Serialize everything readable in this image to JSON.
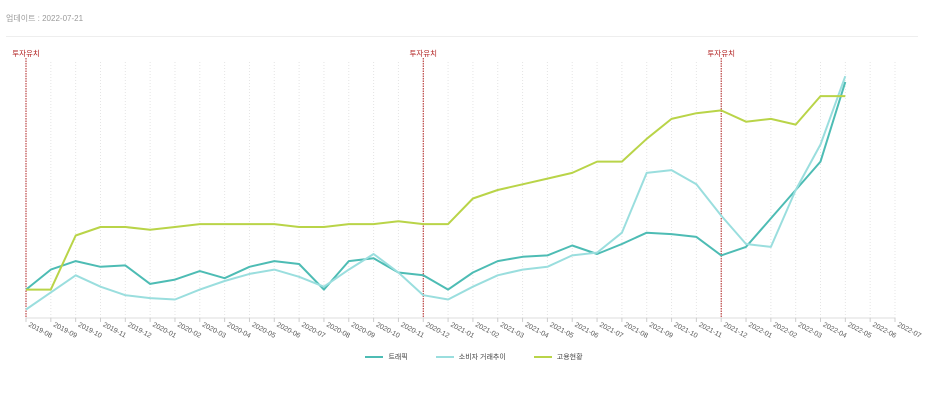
{
  "header": {
    "update_text": "업데이트 : 2022-07-21"
  },
  "chart_data": {
    "type": "line",
    "x": [
      "2019-08",
      "2019-09",
      "2019-10",
      "2019-11",
      "2019-12",
      "2020-01",
      "2020-02",
      "2020-03",
      "2020-04",
      "2020-05",
      "2020-06",
      "2020-07",
      "2020-08",
      "2020-09",
      "2020-10",
      "2020-11",
      "2020-12",
      "2021-01",
      "2021-02",
      "2021-03",
      "2021-04",
      "2021-05",
      "2021-06",
      "2021-07",
      "2021-08",
      "2021-09",
      "2021-10",
      "2021-11",
      "2021-12",
      "2022-01",
      "2022-02",
      "2022-03",
      "2022-04",
      "2022-05",
      "2022-06",
      "2022-07"
    ],
    "series": [
      {
        "name": "트래픽",
        "color": "#4dbcb4",
        "values": [
          10,
          17,
          20,
          18,
          18.5,
          12,
          13.5,
          16.5,
          14,
          18,
          20,
          19,
          10,
          20,
          21,
          16,
          15,
          10,
          16,
          20,
          21.5,
          22,
          25.5,
          22.5,
          26,
          30,
          29.5,
          28.5,
          22,
          25,
          35,
          45,
          55,
          83,
          null,
          null
        ]
      },
      {
        "name": "소비자 거래추이",
        "color": "#9adede",
        "values": [
          3,
          9,
          15,
          11,
          8,
          7,
          6.5,
          10,
          13,
          15.5,
          17,
          14.5,
          11,
          17,
          22.5,
          16,
          8,
          6.5,
          11,
          15,
          17,
          18,
          22,
          23,
          30,
          51,
          52,
          47,
          36,
          26,
          25,
          45,
          61,
          85,
          null,
          null
        ]
      },
      {
        "name": "고용현황",
        "color": "#b9d448",
        "values": [
          10,
          10,
          29,
          32,
          32,
          31,
          32,
          33,
          33,
          33,
          33,
          32,
          32,
          33,
          33,
          34,
          33,
          33,
          42,
          45,
          47,
          49,
          51,
          55,
          55,
          63,
          70,
          72,
          73,
          69,
          70,
          68,
          78,
          78,
          null,
          null
        ]
      }
    ],
    "ylim": [
      0,
      90
    ],
    "events": [
      {
        "index": 0,
        "label": "투자유치"
      },
      {
        "index": 16,
        "label": "투자유치"
      },
      {
        "index": 28,
        "label": "투자유치"
      }
    ],
    "legend_position": "bottom",
    "grid": "vertical-dotted"
  }
}
